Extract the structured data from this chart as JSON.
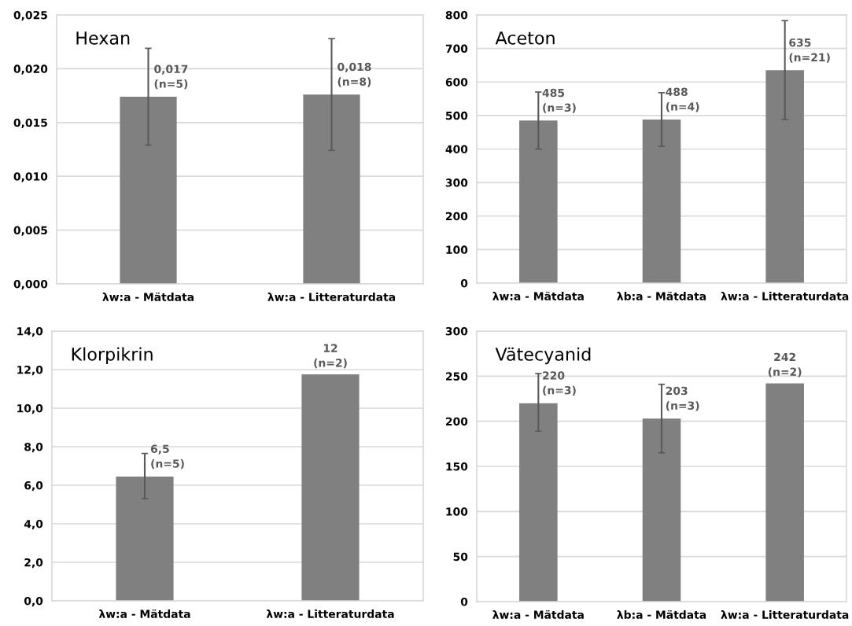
{
  "chart_data": [
    {
      "type": "bar",
      "title": "Hexan",
      "categories": [
        "λw:a - Mätdata",
        "λw:a - Litteraturdata"
      ],
      "values": [
        0.0174,
        0.0176
      ],
      "color": "#808080",
      "errors": [
        [
          0.0129,
          0.0219
        ],
        [
          0.0124,
          0.0228
        ]
      ],
      "value_labels": [
        "0,017\n(n=5)",
        "0,018\n(n=8)"
      ],
      "ylim": [
        0,
        0.025
      ],
      "yticks": [
        {
          "value": 0,
          "label": "0,000"
        },
        {
          "value": 0.005,
          "label": "0,005"
        },
        {
          "value": 0.01,
          "label": "0,010"
        },
        {
          "value": 0.015,
          "label": "0,015"
        },
        {
          "value": 0.02,
          "label": "0,020"
        },
        {
          "value": 0.025,
          "label": "0,025"
        }
      ],
      "grid": "y"
    },
    {
      "type": "bar",
      "title": "Aceton",
      "categories": [
        "λw:a - Mätdata",
        "λb:a - Mätdata",
        "λw:a - Litteraturdata"
      ],
      "values": [
        485,
        488,
        635
      ],
      "color": "#808080",
      "errors": [
        [
          400,
          570
        ],
        [
          408,
          568
        ],
        [
          488,
          783
        ]
      ],
      "value_labels": [
        "485\n(n=3)",
        "488\n(n=4)",
        "635\n(n=21)"
      ],
      "ylim": [
        0,
        800
      ],
      "yticks": [
        0,
        100,
        200,
        300,
        400,
        500,
        600,
        700,
        800
      ],
      "grid": "y"
    },
    {
      "type": "bar",
      "title": "Klorpikrin",
      "categories": [
        "λw:a - Mätdata",
        "λw:a - Litteraturdata"
      ],
      "values": [
        6.45,
        11.75
      ],
      "color": "#808080",
      "errors": [
        [
          5.3,
          7.65
        ],
        null
      ],
      "value_labels": [
        "6,5\n(n=5)",
        "12\n(n=2)"
      ],
      "ylim": [
        0,
        14
      ],
      "yticks": [
        {
          "value": 0,
          "label": "0,0"
        },
        {
          "value": 2,
          "label": "2,0"
        },
        {
          "value": 4,
          "label": "4,0"
        },
        {
          "value": 6,
          "label": "6,0"
        },
        {
          "value": 8,
          "label": "8,0"
        },
        {
          "value": 10,
          "label": "10,0"
        },
        {
          "value": 12,
          "label": "12,0"
        },
        {
          "value": 14,
          "label": "14,0"
        }
      ],
      "grid": "y"
    },
    {
      "type": "bar",
      "title": "Vätecyanid",
      "categories": [
        "λw:a - Mätdata",
        "λb:a - Mätdata",
        "λw:a - Litteraturdata"
      ],
      "values": [
        220,
        203,
        242
      ],
      "color": "#808080",
      "errors": [
        [
          189,
          253
        ],
        [
          165,
          241
        ],
        null
      ],
      "value_labels": [
        "220\n(n=3)",
        "203\n(n=3)",
        "242\n(n=2)"
      ],
      "ylim": [
        0,
        300
      ],
      "yticks": [
        0,
        50,
        100,
        150,
        200,
        250,
        300
      ],
      "grid": "y"
    }
  ]
}
